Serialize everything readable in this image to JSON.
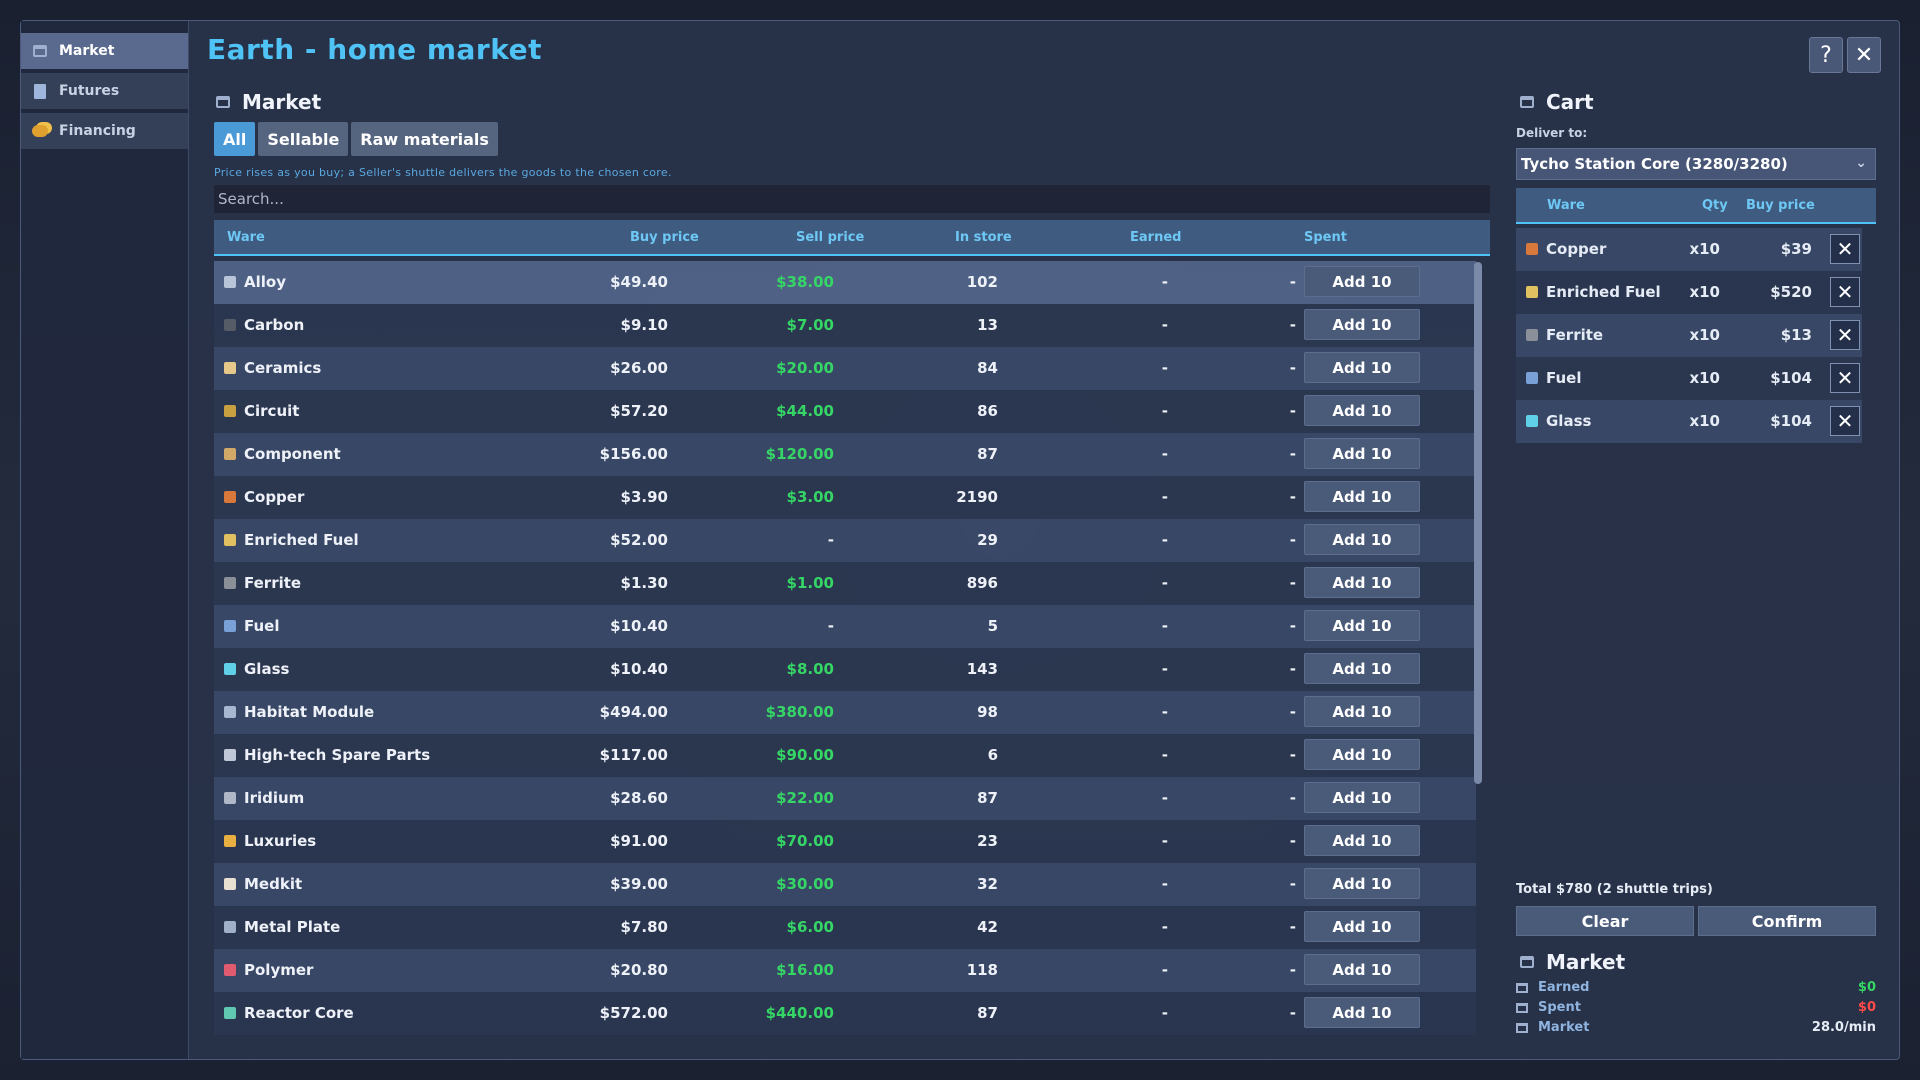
{
  "sidebar": {
    "items": [
      {
        "label": "Market",
        "icon": "market-stall-icon"
      },
      {
        "label": "Futures",
        "icon": "document-icon"
      },
      {
        "label": "Financing",
        "icon": "coins-icon"
      }
    ]
  },
  "window": {
    "title": "Earth - home market",
    "help": "?",
    "close": "✕"
  },
  "market": {
    "title": "Market",
    "tabs": [
      "All",
      "Sellable",
      "Raw materials"
    ],
    "hint": "Price rises as you buy; a Seller's shuttle delivers the goods to the chosen core.",
    "search_placeholder": "Search...",
    "columns": {
      "ware": "Ware",
      "buy": "Buy price",
      "sell": "Sell price",
      "store": "In store",
      "earned": "Earned",
      "spent": "Spent"
    },
    "add_label": "Add 10",
    "rows": [
      {
        "name": "Alloy",
        "buy": "$49.40",
        "sell": "$38.00",
        "store": "102",
        "earned": "-",
        "spent": "-",
        "color": "#b8c4d8"
      },
      {
        "name": "Carbon",
        "buy": "$9.10",
        "sell": "$7.00",
        "store": "13",
        "earned": "-",
        "spent": "-",
        "color": "#555c66"
      },
      {
        "name": "Ceramics",
        "buy": "$26.00",
        "sell": "$20.00",
        "store": "84",
        "earned": "-",
        "spent": "-",
        "color": "#e8c88a"
      },
      {
        "name": "Circuit",
        "buy": "$57.20",
        "sell": "$44.00",
        "store": "86",
        "earned": "-",
        "spent": "-",
        "color": "#c8a040"
      },
      {
        "name": "Component",
        "buy": "$156.00",
        "sell": "$120.00",
        "store": "87",
        "earned": "-",
        "spent": "-",
        "color": "#d0a868"
      },
      {
        "name": "Copper",
        "buy": "$3.90",
        "sell": "$3.00",
        "store": "2190",
        "earned": "-",
        "spent": "-",
        "color": "#d8783a"
      },
      {
        "name": "Enriched Fuel",
        "buy": "$52.00",
        "sell": "-",
        "store": "29",
        "earned": "-",
        "spent": "-",
        "color": "#e0c060"
      },
      {
        "name": "Ferrite",
        "buy": "$1.30",
        "sell": "$1.00",
        "store": "896",
        "earned": "-",
        "spent": "-",
        "color": "#8a8f98"
      },
      {
        "name": "Fuel",
        "buy": "$10.40",
        "sell": "-",
        "store": "5",
        "earned": "-",
        "spent": "-",
        "color": "#7aa0d8"
      },
      {
        "name": "Glass",
        "buy": "$10.40",
        "sell": "$8.00",
        "store": "143",
        "earned": "-",
        "spent": "-",
        "color": "#5fd0e8"
      },
      {
        "name": "Habitat Module",
        "buy": "$494.00",
        "sell": "$380.00",
        "store": "98",
        "earned": "-",
        "spent": "-",
        "color": "#a8b8d0"
      },
      {
        "name": "High-tech Spare Parts",
        "buy": "$117.00",
        "sell": "$90.00",
        "store": "6",
        "earned": "-",
        "spent": "-",
        "color": "#c0c8d8"
      },
      {
        "name": "Iridium",
        "buy": "$28.60",
        "sell": "$22.00",
        "store": "87",
        "earned": "-",
        "spent": "-",
        "color": "#b0b8c8"
      },
      {
        "name": "Luxuries",
        "buy": "$91.00",
        "sell": "$70.00",
        "store": "23",
        "earned": "-",
        "spent": "-",
        "color": "#e8b040"
      },
      {
        "name": "Medkit",
        "buy": "$39.00",
        "sell": "$30.00",
        "store": "32",
        "earned": "-",
        "spent": "-",
        "color": "#e8e0d0"
      },
      {
        "name": "Metal Plate",
        "buy": "$7.80",
        "sell": "$6.00",
        "store": "42",
        "earned": "-",
        "spent": "-",
        "color": "#a0b0c8"
      },
      {
        "name": "Polymer",
        "buy": "$20.80",
        "sell": "$16.00",
        "store": "118",
        "earned": "-",
        "spent": "-",
        "color": "#e05a70"
      },
      {
        "name": "Reactor Core",
        "buy": "$572.00",
        "sell": "$440.00",
        "store": "87",
        "earned": "-",
        "spent": "-",
        "color": "#60c8b0"
      }
    ]
  },
  "cart": {
    "title": "Cart",
    "deliver_label": "Deliver to:",
    "destination": "Tycho Station Core (3280/3280)",
    "columns": {
      "ware": "Ware",
      "qty": "Qty",
      "buy": "Buy price"
    },
    "items": [
      {
        "name": "Copper",
        "qty": "x10",
        "price": "$39",
        "color": "#d8783a"
      },
      {
        "name": "Enriched Fuel",
        "qty": "x10",
        "price": "$520",
        "color": "#e0c060"
      },
      {
        "name": "Ferrite",
        "qty": "x10",
        "price": "$13",
        "color": "#8a8f98"
      },
      {
        "name": "Fuel",
        "qty": "x10",
        "price": "$104",
        "color": "#7aa0d8"
      },
      {
        "name": "Glass",
        "qty": "x10",
        "price": "$104",
        "color": "#5fd0e8"
      }
    ],
    "remove_label": "✕",
    "total": "Total $780 (2 shuttle trips)",
    "clear_label": "Clear",
    "confirm_label": "Confirm"
  },
  "summary": {
    "title": "Market",
    "earned_label": "Earned",
    "earned_value": "$0",
    "earned_color": "#35d665",
    "spent_label": "Spent",
    "spent_value": "$0",
    "spent_color": "#ff4a4a",
    "rate_label": "Market",
    "rate_value": "28.0/min"
  }
}
